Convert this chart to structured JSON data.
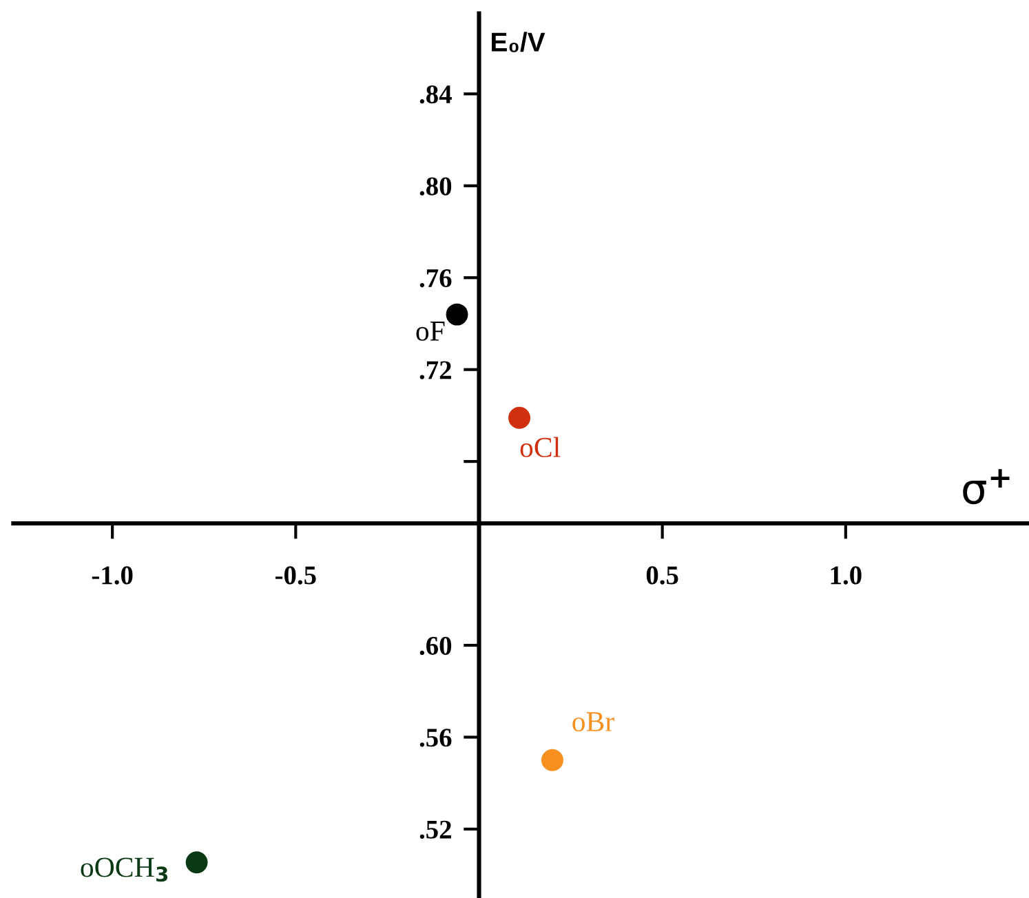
{
  "chart_data": {
    "type": "scatter",
    "xlabel": "σ$^{+}$",
    "ylabel": "E₀/V",
    "xlim": [
      -1.27,
      1.5
    ],
    "ylim": [
      0.49,
      0.875
    ],
    "xticks": [
      {
        "value": -1.0,
        "label": "-1.0"
      },
      {
        "value": -0.5,
        "label": "-0.5"
      },
      {
        "value": 0.5,
        "label": "0.5"
      },
      {
        "value": 1.0,
        "label": "1.0"
      }
    ],
    "yticks": [
      {
        "value": 0.84,
        "label": ".84"
      },
      {
        "value": 0.8,
        "label": ".80"
      },
      {
        "value": 0.76,
        "label": ".76"
      },
      {
        "value": 0.72,
        "label": ".72"
      },
      {
        "value": 0.68,
        "label": null
      },
      {
        "value": 0.6,
        "label": ".60"
      },
      {
        "value": 0.56,
        "label": ".56"
      },
      {
        "value": 0.52,
        "label": ".52"
      }
    ],
    "marker": "circle",
    "legend": false,
    "grid": false,
    "series": [
      {
        "name": "oF",
        "color": "#000000",
        "x": [
          -0.06
        ],
        "values": [
          0.744
        ]
      },
      {
        "name": "oCl",
        "color": "#d03010",
        "x": [
          0.11
        ],
        "values": [
          0.699
        ]
      },
      {
        "name": "oBr",
        "color": "#f7901e",
        "x": [
          0.2
        ],
        "values": [
          0.55
        ]
      },
      {
        "name": "oOCH$_{3}$",
        "color": "#0a3a14",
        "x": [
          -0.77
        ],
        "values": [
          0.5055
        ]
      }
    ]
  }
}
